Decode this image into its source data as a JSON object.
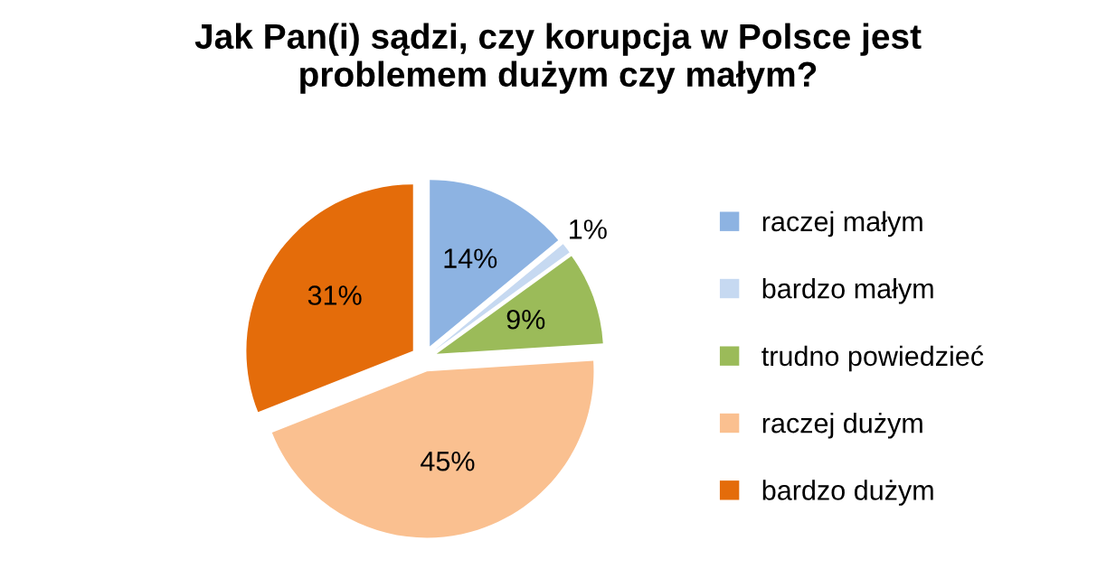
{
  "chart_data": {
    "type": "pie",
    "title": "Jak Pan(i) sądzi, czy korupcja w Polsce jest\nproblemem dużym czy małym?",
    "categories": [
      "raczej małym",
      "bardzo małym",
      "trudno powiedzieć",
      "raczej dużym",
      "bardzo dużym"
    ],
    "values": [
      14,
      1,
      9,
      45,
      31
    ],
    "colors": [
      "#8db3e2",
      "#c6d9f1",
      "#9bbb59",
      "#fac090",
      "#e46c0a"
    ],
    "value_labels": [
      "14%",
      "1%",
      "9%",
      "45%",
      "31%"
    ],
    "legend": "right"
  }
}
